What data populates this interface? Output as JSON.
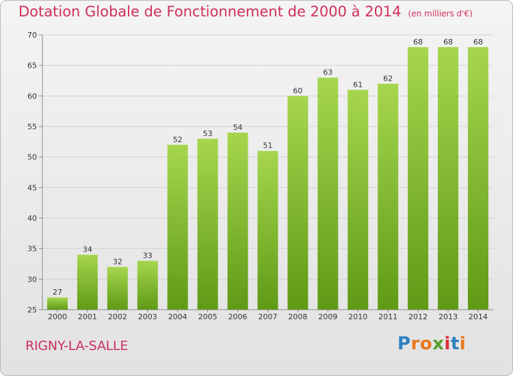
{
  "title": "Dotation Globale de Fonctionnement de 2000 à 2014",
  "unit": "(en milliers d'€)",
  "commune": "RIGNY-LA-SALLE",
  "logo": {
    "text": "Proxiti",
    "letter_colors": [
      "#2e7fc0",
      "#e8781e",
      "#e8781e",
      "#5aa02c",
      "#d8323a",
      "#2e7fc0",
      "#e8781e"
    ]
  },
  "colors": {
    "bar_top": "#a6d64e",
    "bar_bottom": "#5f9a16",
    "title": "#d0305a",
    "grid": "#d2d2d2"
  },
  "chart_data": {
    "type": "bar",
    "title": "Dotation Globale de Fonctionnement de 2000 à 2014",
    "xlabel": "",
    "ylabel": "",
    "categories": [
      "2000",
      "2001",
      "2002",
      "2003",
      "2004",
      "2005",
      "2006",
      "2007",
      "2008",
      "2009",
      "2010",
      "2011",
      "2012",
      "2013",
      "2014"
    ],
    "values": [
      27,
      34,
      32,
      33,
      52,
      53,
      54,
      51,
      60,
      63,
      61,
      62,
      68,
      68,
      68
    ],
    "ylim": [
      25,
      70
    ],
    "yticks": [
      25,
      30,
      35,
      40,
      45,
      50,
      55,
      60,
      65,
      70
    ],
    "grid": true
  }
}
